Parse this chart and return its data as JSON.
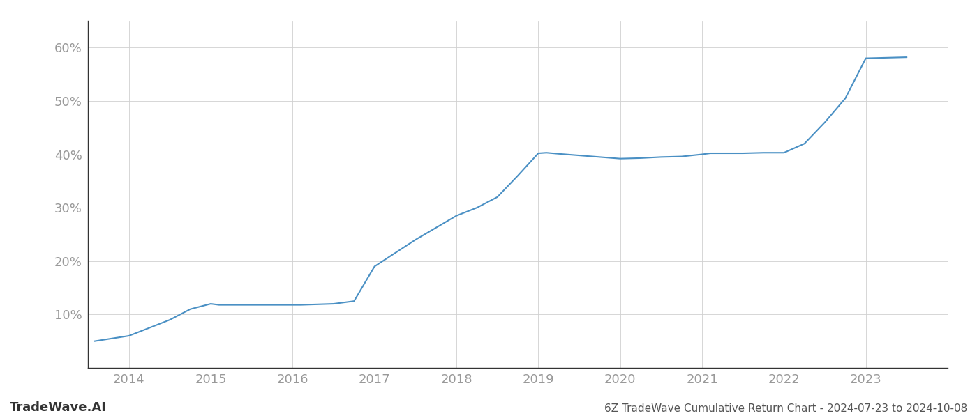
{
  "title": "6Z TradeWave Cumulative Return Chart - 2024-07-23 to 2024-10-08",
  "watermark": "TradeWave.AI",
  "line_color": "#4a90c4",
  "background_color": "#ffffff",
  "grid_color": "#d0d0d0",
  "x_values": [
    2013.58,
    2014.0,
    2014.5,
    2014.75,
    2015.0,
    2015.1,
    2015.5,
    2015.75,
    2016.0,
    2016.1,
    2016.5,
    2016.75,
    2017.0,
    2017.5,
    2018.0,
    2018.25,
    2018.5,
    2018.75,
    2019.0,
    2019.1,
    2019.25,
    2019.5,
    2019.75,
    2020.0,
    2020.25,
    2020.5,
    2020.75,
    2021.0,
    2021.1,
    2021.25,
    2021.5,
    2021.75,
    2022.0,
    2022.25,
    2022.5,
    2022.75,
    2023.0,
    2023.5
  ],
  "y_values": [
    5.0,
    6.0,
    9.0,
    11.0,
    12.0,
    11.8,
    11.8,
    11.8,
    11.8,
    11.8,
    12.0,
    12.5,
    19.0,
    24.0,
    28.5,
    30.0,
    32.0,
    36.0,
    40.2,
    40.3,
    40.1,
    39.8,
    39.5,
    39.2,
    39.3,
    39.5,
    39.6,
    40.0,
    40.2,
    40.2,
    40.2,
    40.3,
    40.3,
    42.0,
    46.0,
    50.5,
    58.0,
    58.2
  ],
  "xlim": [
    2013.5,
    2024.0
  ],
  "ylim": [
    0,
    65
  ],
  "yticks": [
    10,
    20,
    30,
    40,
    50,
    60
  ],
  "xticks": [
    2014,
    2015,
    2016,
    2017,
    2018,
    2019,
    2020,
    2021,
    2022,
    2023
  ],
  "line_width": 1.5,
  "title_fontsize": 11,
  "tick_fontsize": 13,
  "watermark_fontsize": 13,
  "label_color": "#999999"
}
